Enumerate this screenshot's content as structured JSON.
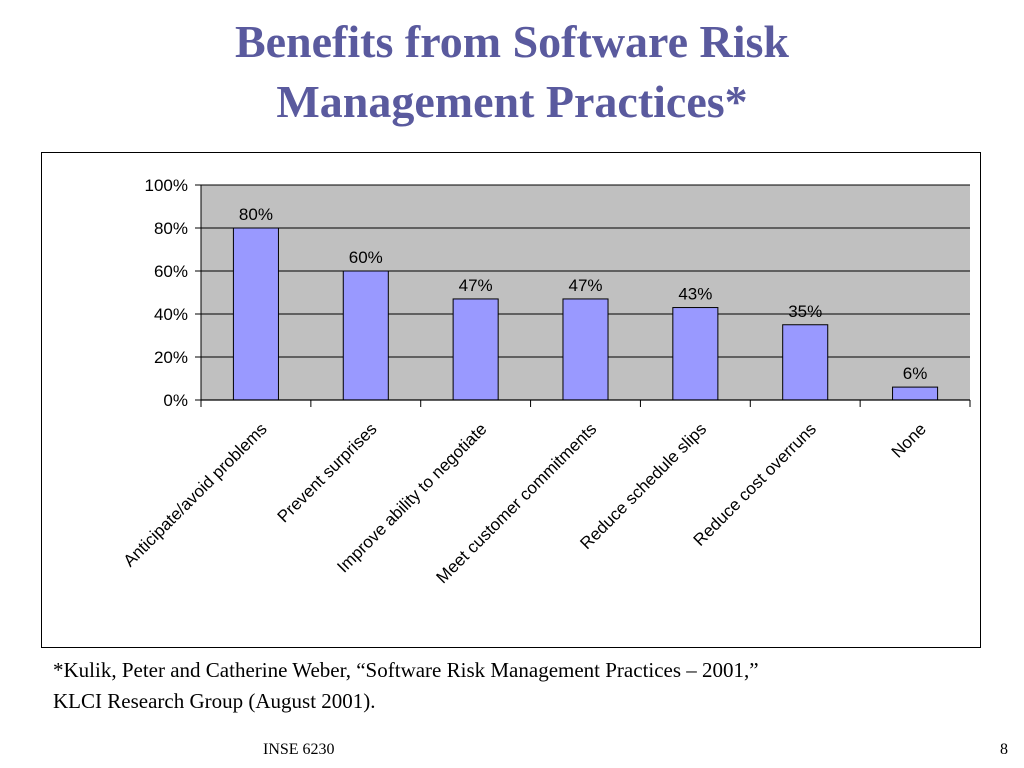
{
  "slide": {
    "title_line1": "Benefits from Software Risk",
    "title_line2": "Management Practices*",
    "footnote_line1": "*Kulik, Peter and Catherine Weber, “Software Risk Management Practices – 2001,”",
    "footnote_line2": "KLCI Research Group (August 2001).",
    "footer_course": "INSE 6230",
    "page_number": "8"
  },
  "chart_data": {
    "type": "bar",
    "categories": [
      "Anticipate/avoid problems",
      "Prevent surprises",
      "Improve ability to negotiate",
      "Meet customer commitments",
      "Reduce schedule slips",
      "Reduce cost overruns",
      "None"
    ],
    "values": [
      80,
      60,
      47,
      47,
      43,
      35,
      6
    ],
    "data_labels": [
      "80%",
      "60%",
      "47%",
      "47%",
      "43%",
      "35%",
      "6%"
    ],
    "yticks": [
      0,
      20,
      40,
      60,
      80,
      100
    ],
    "ytick_labels": [
      "0%",
      "20%",
      "40%",
      "60%",
      "80%",
      "100%"
    ],
    "ylim": [
      0,
      100
    ],
    "grid": true,
    "colors": {
      "bar_fill": "#9999ff",
      "bar_stroke": "#000000",
      "plot_background": "#c0c0c0",
      "title": "#5a5a9e"
    }
  }
}
